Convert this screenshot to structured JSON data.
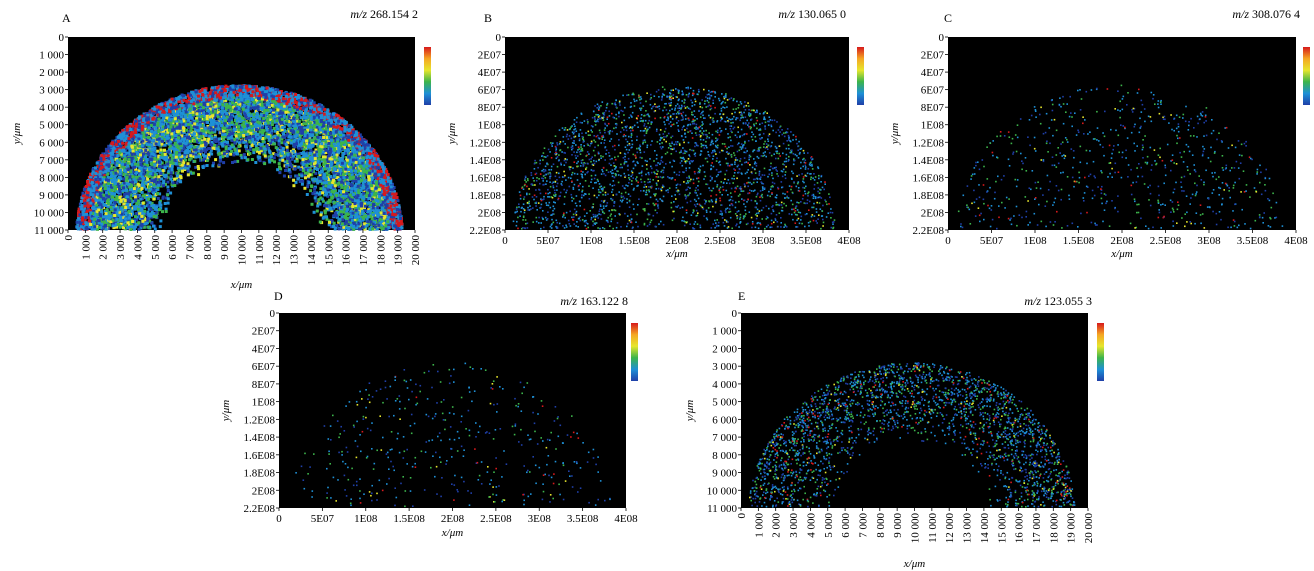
{
  "chart_data": [
    {
      "panel_label": "A",
      "type": "heatmap",
      "mz_prefix": "m/z",
      "mz_value": "268.154 2",
      "xlabel": "x/μm",
      "ylabel": "y/μm",
      "xlim": [
        0,
        20000
      ],
      "ylim": [
        0,
        11000
      ],
      "y_inverted": true,
      "x_ticks": [
        "0",
        "1 000",
        "2 000",
        "3 000",
        "4 000",
        "5 000",
        "6 000",
        "7 000",
        "8 000",
        "9 000",
        "10 000",
        "11 000",
        "12 000",
        "13 000",
        "14 000",
        "15 000",
        "16 000",
        "17 000",
        "18 000",
        "19 000",
        "20 000"
      ],
      "x_tick_orientation": "vertical",
      "y_ticks": [
        "0",
        "1 000",
        "2 000",
        "3 000",
        "4 000",
        "5 000",
        "6 000",
        "7 000",
        "8 000",
        "9 000",
        "10 000",
        "11 000"
      ],
      "colorscale": [
        "#d7191c",
        "#f5a623",
        "#e6e62d",
        "#3cb44b",
        "#1e90d6",
        "#1f3fa8"
      ],
      "density": "high"
    },
    {
      "panel_label": "B",
      "type": "heatmap",
      "mz_prefix": "m/z",
      "mz_value": "130.065 0",
      "xlabel": "x/μm",
      "ylabel": "y/μm",
      "xlim": [
        0,
        400000000
      ],
      "ylim": [
        0,
        220000000
      ],
      "y_inverted": true,
      "x_ticks": [
        "0",
        "5E07",
        "1E08",
        "1.5E08",
        "2E08",
        "2.5E08",
        "3E08",
        "3.5E08",
        "4E08"
      ],
      "x_tick_orientation": "horizontal",
      "y_ticks": [
        "0",
        "2E07",
        "4E07",
        "6E07",
        "8E07",
        "1E08",
        "1.2E08",
        "1.4E08",
        "1.6E08",
        "1.8E08",
        "2E08",
        "2.2E08"
      ],
      "colorscale": [
        "#d7191c",
        "#f5a623",
        "#e6e62d",
        "#3cb44b",
        "#1e90d6",
        "#1f3fa8"
      ],
      "density": "medium"
    },
    {
      "panel_label": "C",
      "type": "heatmap",
      "mz_prefix": "m/z",
      "mz_value": "308.076 4",
      "xlabel": "x/μm",
      "ylabel": "y/μm",
      "xlim": [
        0,
        400000000
      ],
      "ylim": [
        0,
        220000000
      ],
      "y_inverted": true,
      "x_ticks": [
        "0",
        "5E07",
        "1E08",
        "1.5E08",
        "2E08",
        "2.5E08",
        "3E08",
        "3.5E08",
        "4E08"
      ],
      "x_tick_orientation": "horizontal",
      "y_ticks": [
        "0",
        "2E07",
        "4E07",
        "6E07",
        "8E07",
        "1E08",
        "1.2E08",
        "1.4E08",
        "1.6E08",
        "1.8E08",
        "2E08",
        "2.2E08"
      ],
      "colorscale": [
        "#d7191c",
        "#f5a623",
        "#e6e62d",
        "#3cb44b",
        "#1e90d6",
        "#1f3fa8"
      ],
      "density": "sparse"
    },
    {
      "panel_label": "D",
      "type": "heatmap",
      "mz_prefix": "m/z",
      "mz_value": "163.122 8",
      "xlabel": "x/μm",
      "ylabel": "y/μm",
      "xlim": [
        0,
        400000000
      ],
      "ylim": [
        0,
        220000000
      ],
      "y_inverted": true,
      "x_ticks": [
        "0",
        "5E07",
        "1E08",
        "1.5E08",
        "2E08",
        "2.5E08",
        "3E08",
        "3.5E08",
        "4E08"
      ],
      "x_tick_orientation": "horizontal",
      "y_ticks": [
        "0",
        "2E07",
        "4E07",
        "6E07",
        "8E07",
        "1E08",
        "1.2E08",
        "1.4E08",
        "1.6E08",
        "1.8E08",
        "2E08",
        "2.2E08"
      ],
      "colorscale": [
        "#d7191c",
        "#f5a623",
        "#e6e62d",
        "#3cb44b",
        "#1e90d6",
        "#1f3fa8"
      ],
      "density": "very sparse"
    },
    {
      "panel_label": "E",
      "type": "heatmap",
      "mz_prefix": "m/z",
      "mz_value": "123.055 3",
      "xlabel": "x/μm",
      "ylabel": "y/μm",
      "xlim": [
        0,
        20000
      ],
      "ylim": [
        0,
        11000
      ],
      "y_inverted": true,
      "x_ticks": [
        "0",
        "1 000",
        "2 000",
        "3 000",
        "4 000",
        "5 000",
        "6 000",
        "7 000",
        "8 000",
        "9 000",
        "10 000",
        "11 000",
        "12 000",
        "13 000",
        "14 000",
        "15 000",
        "16 000",
        "17 000",
        "18 000",
        "19 000",
        "20 000"
      ],
      "x_tick_orientation": "vertical",
      "y_ticks": [
        "0",
        "1 000",
        "2 000",
        "3 000",
        "4 000",
        "5 000",
        "6 000",
        "7 000",
        "8 000",
        "9 000",
        "10 000",
        "11 000"
      ],
      "colorscale": [
        "#d7191c",
        "#f5a623",
        "#e6e62d",
        "#3cb44b",
        "#1e90d6",
        "#1f3fa8"
      ],
      "density": "medium"
    }
  ]
}
